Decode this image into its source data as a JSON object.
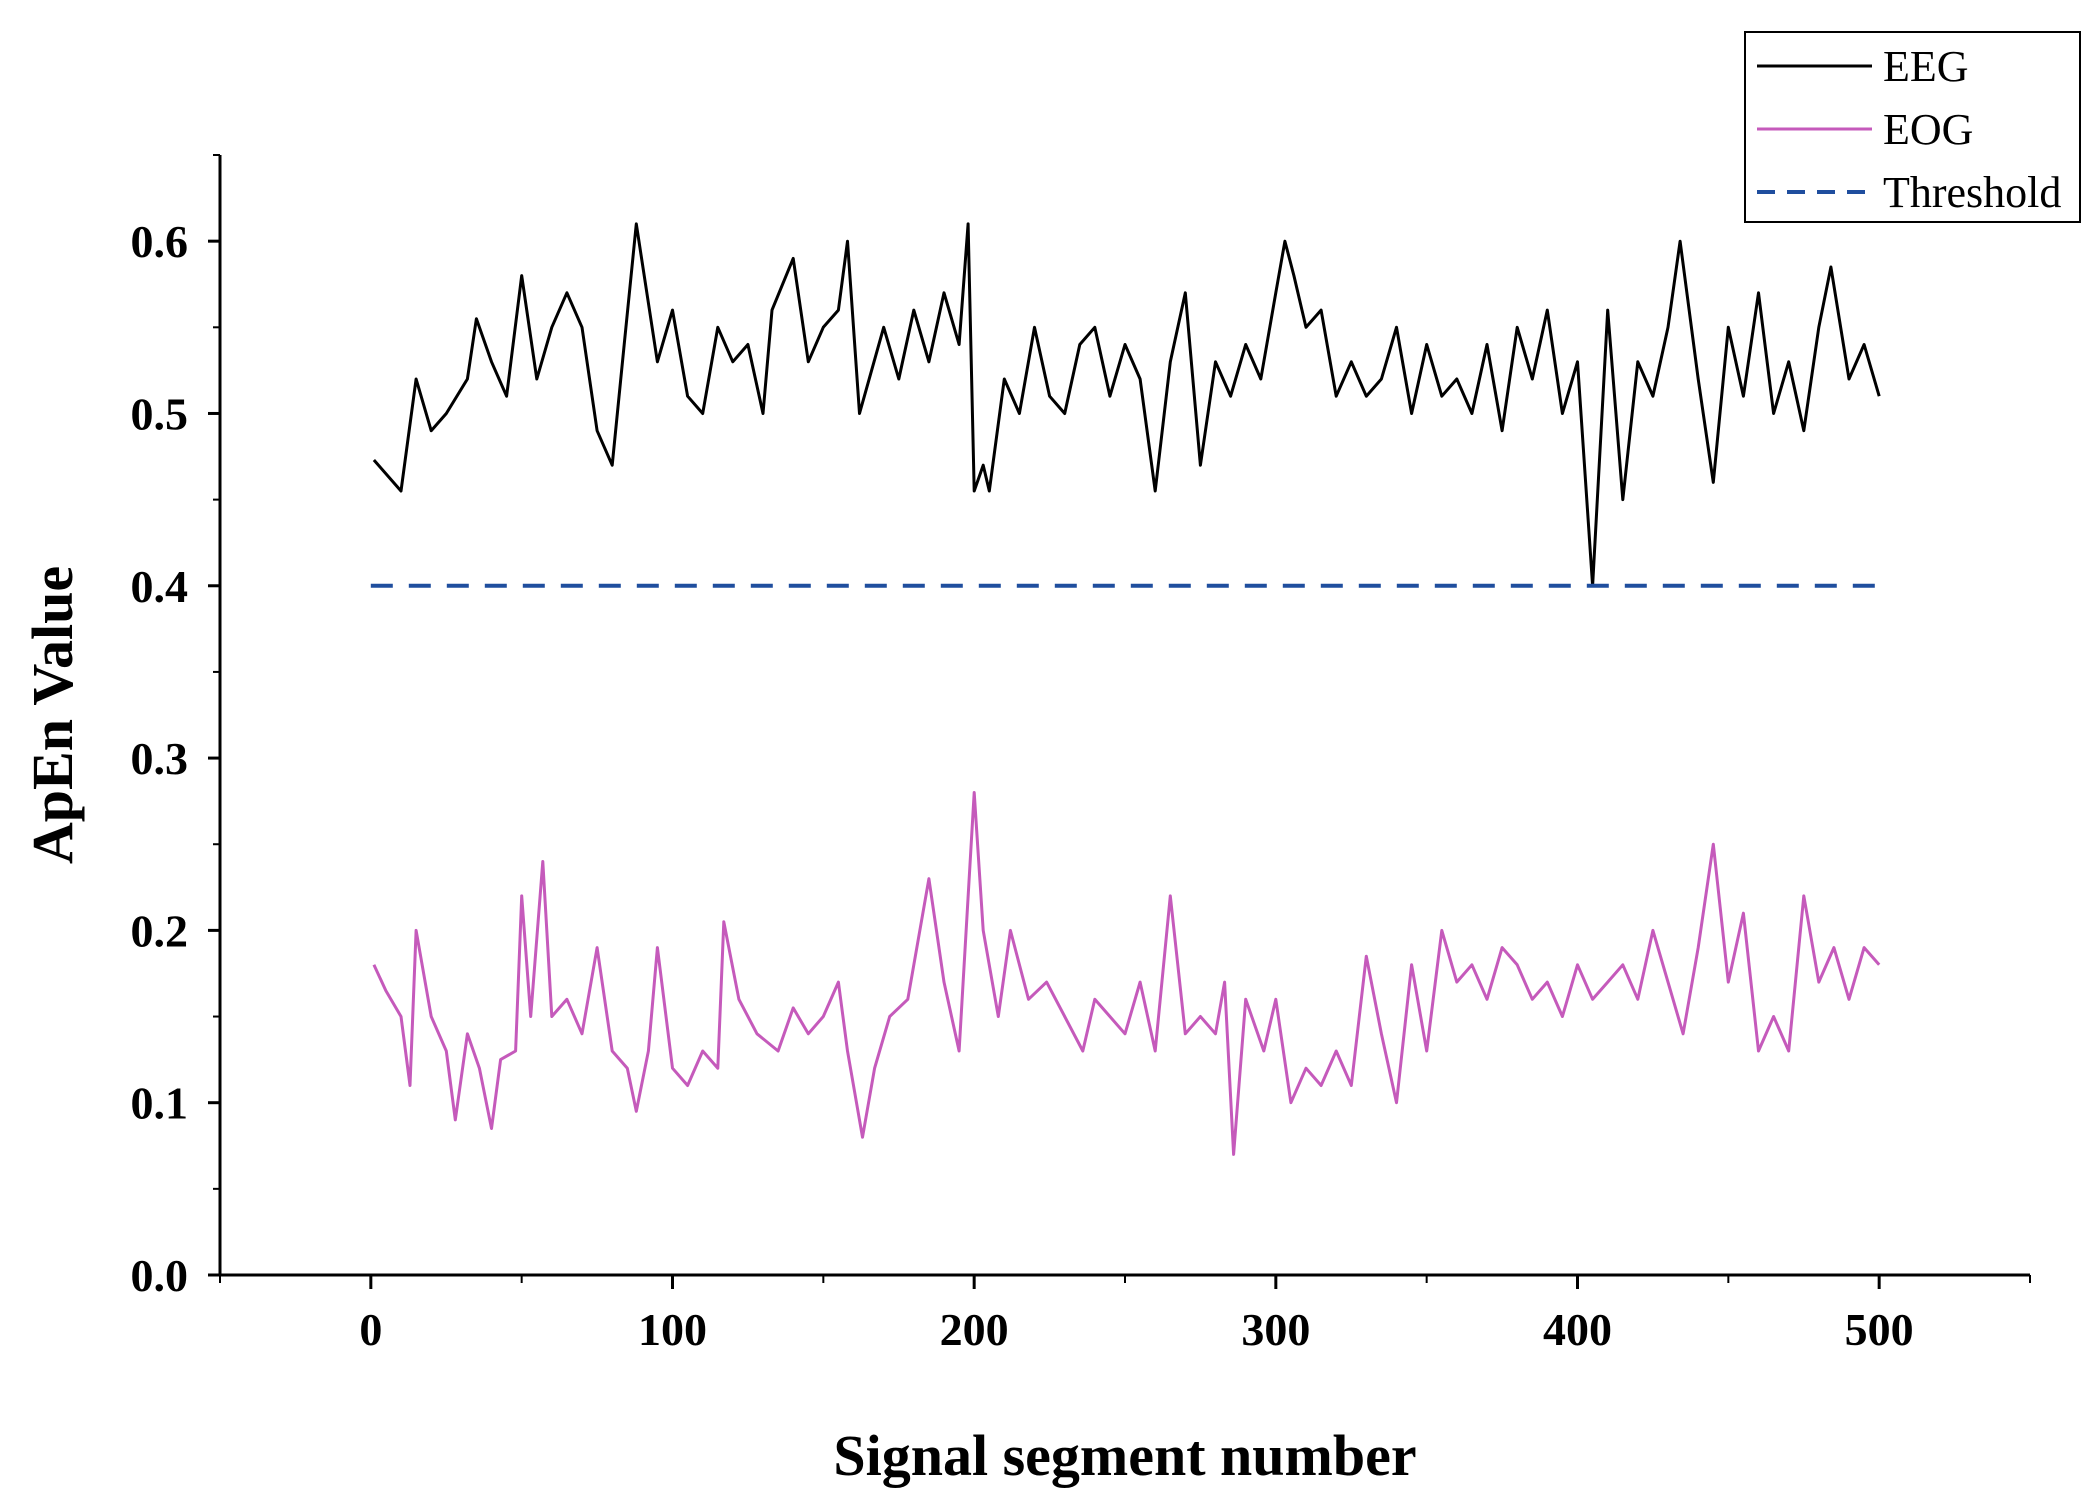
{
  "chart_data": {
    "type": "line",
    "xlabel": "Signal segment number",
    "ylabel": "ApEn Value",
    "xlim": [
      -50,
      550
    ],
    "ylim": [
      0,
      0.65
    ],
    "xticks": [
      0,
      100,
      200,
      300,
      400,
      500
    ],
    "xtick_labels": [
      "0",
      "100",
      "200",
      "300",
      "400",
      "500"
    ],
    "yticks": [
      0,
      0.1,
      0.2,
      0.3,
      0.4,
      0.5,
      0.6
    ],
    "ytick_labels": [
      "0.0",
      "0.1",
      "0.2",
      "0.3",
      "0.4",
      "0.5",
      "0.6"
    ],
    "legend_position": "top-right",
    "grid": false,
    "series": [
      {
        "name": "EEG",
        "color": "#000000",
        "style": "solid",
        "x": [
          1,
          10,
          15,
          20,
          25,
          32,
          35,
          40,
          45,
          50,
          55,
          60,
          65,
          70,
          75,
          80,
          84,
          88,
          95,
          100,
          105,
          110,
          115,
          120,
          125,
          130,
          133,
          140,
          145,
          150,
          155,
          158,
          162,
          170,
          175,
          180,
          185,
          190,
          195,
          198,
          200,
          203,
          205,
          210,
          215,
          220,
          225,
          230,
          235,
          240,
          245,
          250,
          255,
          260,
          265,
          270,
          275,
          280,
          285,
          290,
          295,
          300,
          303,
          306,
          310,
          315,
          320,
          325,
          330,
          335,
          340,
          345,
          350,
          355,
          360,
          365,
          370,
          375,
          380,
          385,
          390,
          395,
          400,
          405,
          410,
          415,
          420,
          425,
          430,
          434,
          440,
          445,
          450,
          455,
          460,
          465,
          470,
          475,
          480,
          484,
          490,
          495,
          500
        ],
        "y": [
          0.473,
          0.455,
          0.52,
          0.49,
          0.5,
          0.52,
          0.555,
          0.53,
          0.51,
          0.58,
          0.52,
          0.55,
          0.57,
          0.55,
          0.49,
          0.47,
          0.54,
          0.61,
          0.53,
          0.56,
          0.51,
          0.5,
          0.55,
          0.53,
          0.54,
          0.5,
          0.56,
          0.59,
          0.53,
          0.55,
          0.56,
          0.6,
          0.5,
          0.55,
          0.52,
          0.56,
          0.53,
          0.57,
          0.54,
          0.61,
          0.455,
          0.47,
          0.455,
          0.52,
          0.5,
          0.55,
          0.51,
          0.5,
          0.54,
          0.55,
          0.51,
          0.54,
          0.52,
          0.455,
          0.53,
          0.57,
          0.47,
          0.53,
          0.51,
          0.54,
          0.52,
          0.57,
          0.6,
          0.58,
          0.55,
          0.56,
          0.51,
          0.53,
          0.51,
          0.52,
          0.55,
          0.5,
          0.54,
          0.51,
          0.52,
          0.5,
          0.54,
          0.49,
          0.55,
          0.52,
          0.56,
          0.5,
          0.53,
          0.4,
          0.56,
          0.45,
          0.53,
          0.51,
          0.55,
          0.6,
          0.52,
          0.46,
          0.55,
          0.51,
          0.57,
          0.5,
          0.53,
          0.49,
          0.55,
          0.585,
          0.52,
          0.54,
          0.51
        ]
      },
      {
        "name": "EOG",
        "color": "#c55abb",
        "style": "solid",
        "x": [
          1,
          5,
          10,
          13,
          15,
          20,
          25,
          28,
          32,
          36,
          40,
          43,
          48,
          50,
          53,
          57,
          60,
          65,
          70,
          75,
          80,
          85,
          88,
          92,
          95,
          100,
          105,
          110,
          115,
          117,
          122,
          128,
          135,
          140,
          145,
          150,
          155,
          158,
          163,
          167,
          172,
          178,
          185,
          190,
          195,
          200,
          203,
          208,
          212,
          218,
          224,
          230,
          236,
          240,
          245,
          250,
          255,
          260,
          265,
          270,
          275,
          280,
          283,
          286,
          290,
          296,
          300,
          305,
          310,
          315,
          320,
          325,
          330,
          335,
          340,
          345,
          350,
          355,
          360,
          365,
          370,
          375,
          380,
          385,
          390,
          395,
          400,
          405,
          410,
          415,
          420,
          425,
          430,
          435,
          440,
          445,
          450,
          455,
          460,
          465,
          470,
          475,
          480,
          485,
          490,
          495,
          500
        ],
        "y": [
          0.18,
          0.165,
          0.15,
          0.11,
          0.2,
          0.15,
          0.13,
          0.09,
          0.14,
          0.12,
          0.085,
          0.125,
          0.13,
          0.22,
          0.15,
          0.24,
          0.15,
          0.16,
          0.14,
          0.19,
          0.13,
          0.12,
          0.095,
          0.13,
          0.19,
          0.12,
          0.11,
          0.13,
          0.12,
          0.205,
          0.16,
          0.14,
          0.13,
          0.155,
          0.14,
          0.15,
          0.17,
          0.13,
          0.08,
          0.12,
          0.15,
          0.16,
          0.23,
          0.17,
          0.13,
          0.28,
          0.2,
          0.15,
          0.2,
          0.16,
          0.17,
          0.15,
          0.13,
          0.16,
          0.15,
          0.14,
          0.17,
          0.13,
          0.22,
          0.14,
          0.15,
          0.14,
          0.17,
          0.07,
          0.16,
          0.13,
          0.16,
          0.1,
          0.12,
          0.11,
          0.13,
          0.11,
          0.185,
          0.14,
          0.1,
          0.18,
          0.13,
          0.2,
          0.17,
          0.18,
          0.16,
          0.19,
          0.18,
          0.16,
          0.17,
          0.15,
          0.18,
          0.16,
          0.17,
          0.18,
          0.16,
          0.2,
          0.17,
          0.14,
          0.19,
          0.25,
          0.17,
          0.21,
          0.13,
          0.15,
          0.13,
          0.22,
          0.17,
          0.19,
          0.16,
          0.19,
          0.18
        ]
      },
      {
        "name": "Threshold",
        "color": "#1f4e9e",
        "style": "dashed",
        "x": [
          0,
          500
        ],
        "y": [
          0.4,
          0.4
        ]
      }
    ]
  }
}
